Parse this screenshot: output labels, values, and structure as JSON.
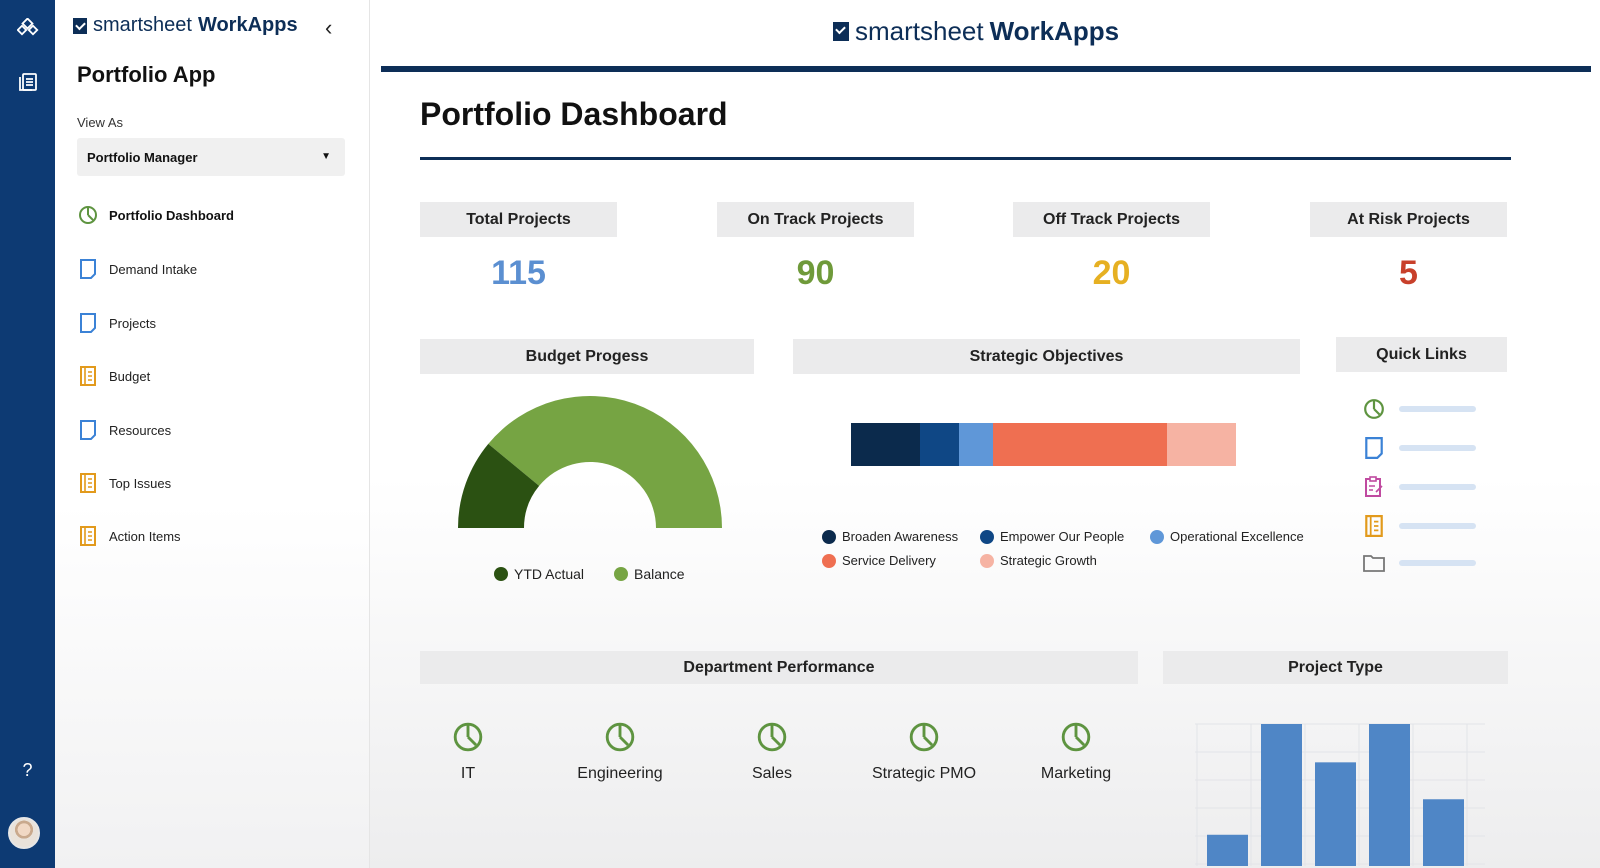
{
  "sidebar": {
    "brand_light": "smartsheet",
    "brand_bold": "WorkApps",
    "app_title": "Portfolio App",
    "view_as_label": "View As",
    "view_as_value": "Portfolio Manager",
    "items": [
      {
        "label": "Portfolio Dashboard",
        "icon": "dashboard-icon",
        "active": true
      },
      {
        "label": "Demand Intake",
        "icon": "sheet-icon"
      },
      {
        "label": "Projects",
        "icon": "sheet-icon"
      },
      {
        "label": "Budget",
        "icon": "report-icon"
      },
      {
        "label": "Resources",
        "icon": "sheet-icon"
      },
      {
        "label": "Top Issues",
        "icon": "report-icon"
      },
      {
        "label": "Action Items",
        "icon": "report-icon"
      }
    ]
  },
  "rail": {
    "help": "?"
  },
  "header": {
    "brand_light": "smartsheet",
    "brand_bold": "WorkApps"
  },
  "dashboard": {
    "title": "Portfolio Dashboard",
    "kpis": [
      {
        "label": "Total Projects",
        "value": "115",
        "color": "#5b8fd1"
      },
      {
        "label": "On Track Projects",
        "value": "90",
        "color": "#6f9a3a"
      },
      {
        "label": "Off Track Projects",
        "value": "20",
        "color": "#e6b022"
      },
      {
        "label": "At Risk Projects",
        "value": "5",
        "color": "#c8402b"
      }
    ],
    "budget": {
      "title": "Budget Progess",
      "ytd_actual_fraction": 0.22,
      "legend": [
        {
          "label": "YTD Actual",
          "color": "#2b5112"
        },
        {
          "label": "Balance",
          "color": "#76a443"
        }
      ]
    },
    "strategic": {
      "title": "Strategic Objectives",
      "segments": [
        {
          "label": "Broaden Awareness",
          "share": 18,
          "color": "#0b2a4c"
        },
        {
          "label": "Empower Our People",
          "share": 10,
          "color": "#0f4785"
        },
        {
          "label": "Operational Excellence",
          "share": 9,
          "color": "#5f97d8"
        },
        {
          "label": "Service Delivery",
          "share": 45,
          "color": "#ef6f51"
        },
        {
          "label": "Strategic Growth",
          "share": 18,
          "color": "#f6b3a3"
        }
      ]
    },
    "quick_links": {
      "title": "Quick Links",
      "icons": [
        "dashboard-icon",
        "sheet-icon",
        "form-icon",
        "report-icon",
        "folder-icon"
      ]
    },
    "departments": {
      "title": "Department Performance",
      "items": [
        "IT",
        "Engineering",
        "Sales",
        "Strategic PMO",
        "Marketing"
      ]
    },
    "project_type": {
      "title": "Project Type"
    }
  },
  "chart_data": {
    "type": "bar",
    "title": "Project Type",
    "values": [
      22,
      100,
      73,
      100,
      47
    ],
    "color": "#4f86c6",
    "grid": true
  }
}
